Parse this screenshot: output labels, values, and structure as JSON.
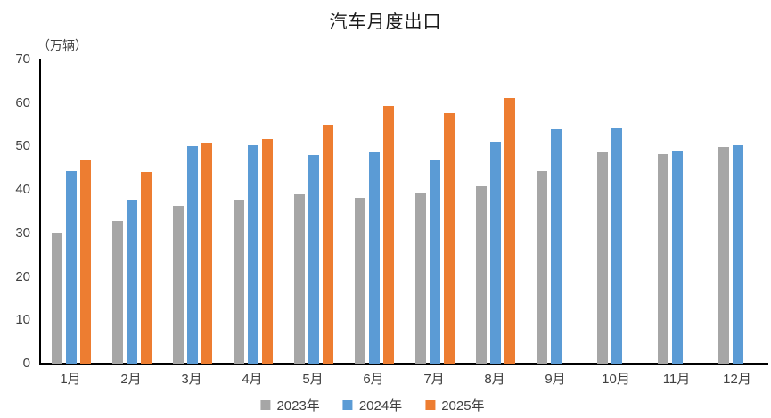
{
  "chart_data": {
    "type": "bar",
    "title": "汽车月度出口",
    "unit": "（万辆）",
    "categories": [
      "1月",
      "2月",
      "3月",
      "4月",
      "5月",
      "6月",
      "7月",
      "8月",
      "9月",
      "10月",
      "11月",
      "12月"
    ],
    "series": [
      {
        "name": "2023年",
        "color": "#A6A6A6",
        "values": [
          30.1,
          32.9,
          36.3,
          37.7,
          39.0,
          38.2,
          39.2,
          40.8,
          44.4,
          48.8,
          48.2,
          49.9
        ]
      },
      {
        "name": "2024年",
        "color": "#5B9BD5",
        "values": [
          44.3,
          37.8,
          50.2,
          50.4,
          48.1,
          48.6,
          47.0,
          51.2,
          53.9,
          54.3,
          49.0,
          50.4
        ]
      },
      {
        "name": "2025年",
        "color": "#ED7D31",
        "values": [
          47.1,
          44.1,
          50.8,
          51.7,
          55.1,
          59.4,
          57.6,
          61.2,
          null,
          null,
          null,
          null
        ]
      }
    ],
    "ylim": [
      0,
      70
    ],
    "yticks": [
      0,
      10,
      20,
      30,
      40,
      50,
      60,
      70
    ],
    "xlabel": "",
    "ylabel": "（万辆）",
    "grid": false,
    "legend_position": "bottom"
  }
}
